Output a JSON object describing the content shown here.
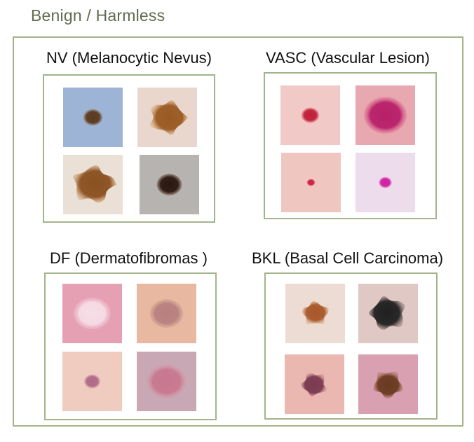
{
  "title": "Benign / Harmless",
  "groups": [
    {
      "label": "NV (Melanocytic Nevus)",
      "images": [
        {
          "bg": "#9db4d6",
          "lesion": "#5b3a1f",
          "edge": "#8a6338",
          "size": 0.32,
          "shape": "oval"
        },
        {
          "bg": "#e9d6cc",
          "lesion": "#9a5a22",
          "edge": "#c88a4a",
          "size": 0.7,
          "shape": "blob"
        },
        {
          "bg": "#ebe0d6",
          "lesion": "#8a5020",
          "edge": "#b87a40",
          "size": 0.78,
          "shape": "blob"
        },
        {
          "bg": "#b7b3b0",
          "lesion": "#2a1810",
          "edge": "#5a3820",
          "size": 0.42,
          "shape": "oval"
        }
      ]
    },
    {
      "label": "VASC (Vascular Lesion)",
      "images": [
        {
          "bg": "#f1c9c7",
          "lesion": "#c0203a",
          "edge": "#e06070",
          "size": 0.3,
          "shape": "oval"
        },
        {
          "bg": "#e8a8b0",
          "lesion": "#b8206a",
          "edge": "#e07090",
          "size": 0.72,
          "shape": "oval"
        },
        {
          "bg": "#f0c6c0",
          "lesion": "#d02040",
          "edge": "#e86878",
          "size": 0.14,
          "shape": "oval"
        },
        {
          "bg": "#ecdcec",
          "lesion": "#d020a0",
          "edge": "#e070c8",
          "size": 0.22,
          "shape": "oval"
        }
      ]
    },
    {
      "label": "DF (Dermatofibromas )",
      "images": [
        {
          "bg": "#e6a0b4",
          "lesion": "#f6dde6",
          "edge": "#efc0d0",
          "size": 0.62,
          "shape": "oval"
        },
        {
          "bg": "#e8b8a0",
          "lesion": "#b88080",
          "edge": "#c89888",
          "size": 0.56,
          "shape": "oval"
        },
        {
          "bg": "#f0ccc0",
          "lesion": "#b06a88",
          "edge": "#d8a0aa",
          "size": 0.28,
          "shape": "oval"
        },
        {
          "bg": "#c8a8b4",
          "lesion": "#c87890",
          "edge": "#d89aa8",
          "size": 0.66,
          "shape": "oval"
        }
      ]
    },
    {
      "label": "BKL (Basal Cell Carcinoma)",
      "images": [
        {
          "bg": "#ecdcd4",
          "lesion": "#a8582a",
          "edge": "#c88050",
          "size": 0.5,
          "shape": "blob"
        },
        {
          "bg": "#e0c8c4",
          "lesion": "#202020",
          "edge": "#5a4848",
          "size": 0.7,
          "shape": "blob"
        },
        {
          "bg": "#eab8b0",
          "lesion": "#7a3a50",
          "edge": "#b87080",
          "size": 0.5,
          "shape": "blob"
        },
        {
          "bg": "#d8a0b0",
          "lesion": "#6a3a20",
          "edge": "#a06040",
          "size": 0.58,
          "shape": "blob"
        }
      ]
    }
  ]
}
